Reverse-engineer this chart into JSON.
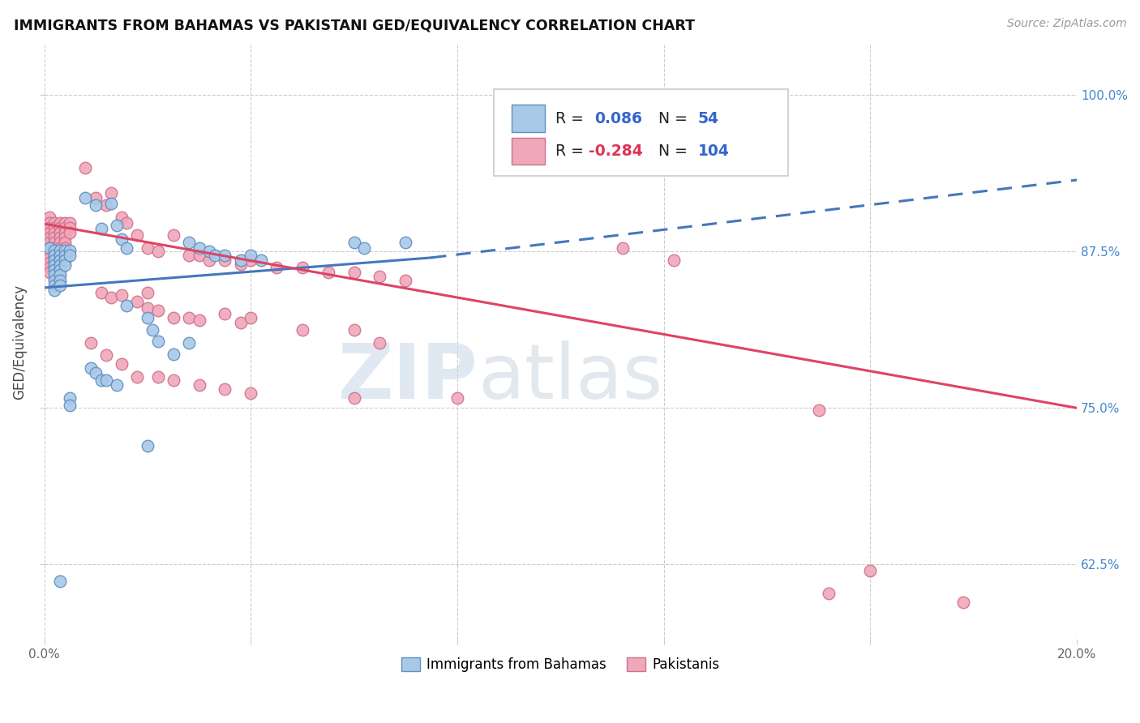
{
  "title": "IMMIGRANTS FROM BAHAMAS VS PAKISTANI GED/EQUIVALENCY CORRELATION CHART",
  "source": "Source: ZipAtlas.com",
  "ylabel": "GED/Equivalency",
  "yticks": [
    "62.5%",
    "75.0%",
    "87.5%",
    "100.0%"
  ],
  "ytick_vals": [
    0.625,
    0.75,
    0.875,
    1.0
  ],
  "xlim": [
    0.0,
    0.2
  ],
  "ylim": [
    0.565,
    1.04
  ],
  "blue_color": "#A8C8E8",
  "pink_color": "#F0A8B8",
  "blue_edge_color": "#6090C0",
  "pink_edge_color": "#D07090",
  "blue_line_color": "#4477BB",
  "pink_line_color": "#DD4466",
  "blue_scatter": [
    [
      0.001,
      0.878
    ],
    [
      0.002,
      0.876
    ],
    [
      0.002,
      0.872
    ],
    [
      0.002,
      0.868
    ],
    [
      0.002,
      0.864
    ],
    [
      0.002,
      0.86
    ],
    [
      0.002,
      0.856
    ],
    [
      0.002,
      0.852
    ],
    [
      0.002,
      0.848
    ],
    [
      0.002,
      0.844
    ],
    [
      0.003,
      0.876
    ],
    [
      0.003,
      0.872
    ],
    [
      0.003,
      0.868
    ],
    [
      0.003,
      0.864
    ],
    [
      0.003,
      0.86
    ],
    [
      0.003,
      0.856
    ],
    [
      0.003,
      0.852
    ],
    [
      0.003,
      0.848
    ],
    [
      0.004,
      0.876
    ],
    [
      0.004,
      0.872
    ],
    [
      0.004,
      0.868
    ],
    [
      0.004,
      0.864
    ],
    [
      0.005,
      0.876
    ],
    [
      0.005,
      0.872
    ],
    [
      0.005,
      0.758
    ],
    [
      0.005,
      0.752
    ],
    [
      0.008,
      0.918
    ],
    [
      0.01,
      0.912
    ],
    [
      0.011,
      0.893
    ],
    [
      0.013,
      0.913
    ],
    [
      0.014,
      0.896
    ],
    [
      0.015,
      0.885
    ],
    [
      0.016,
      0.878
    ],
    [
      0.02,
      0.822
    ],
    [
      0.021,
      0.812
    ],
    [
      0.022,
      0.803
    ],
    [
      0.025,
      0.793
    ],
    [
      0.028,
      0.882
    ],
    [
      0.028,
      0.802
    ],
    [
      0.03,
      0.878
    ],
    [
      0.032,
      0.875
    ],
    [
      0.033,
      0.872
    ],
    [
      0.035,
      0.872
    ],
    [
      0.038,
      0.868
    ],
    [
      0.04,
      0.872
    ],
    [
      0.042,
      0.868
    ],
    [
      0.009,
      0.782
    ],
    [
      0.01,
      0.778
    ],
    [
      0.011,
      0.772
    ],
    [
      0.012,
      0.772
    ],
    [
      0.014,
      0.768
    ],
    [
      0.016,
      0.832
    ],
    [
      0.02,
      0.72
    ],
    [
      0.06,
      0.882
    ],
    [
      0.062,
      0.878
    ],
    [
      0.07,
      0.882
    ],
    [
      0.003,
      0.612
    ]
  ],
  "pink_scatter": [
    [
      0.001,
      0.902
    ],
    [
      0.001,
      0.898
    ],
    [
      0.001,
      0.894
    ],
    [
      0.001,
      0.89
    ],
    [
      0.001,
      0.886
    ],
    [
      0.001,
      0.882
    ],
    [
      0.001,
      0.878
    ],
    [
      0.001,
      0.874
    ],
    [
      0.001,
      0.87
    ],
    [
      0.001,
      0.866
    ],
    [
      0.001,
      0.862
    ],
    [
      0.001,
      0.858
    ],
    [
      0.002,
      0.898
    ],
    [
      0.002,
      0.894
    ],
    [
      0.002,
      0.89
    ],
    [
      0.002,
      0.886
    ],
    [
      0.002,
      0.882
    ],
    [
      0.002,
      0.878
    ],
    [
      0.002,
      0.874
    ],
    [
      0.002,
      0.87
    ],
    [
      0.002,
      0.866
    ],
    [
      0.002,
      0.862
    ],
    [
      0.003,
      0.898
    ],
    [
      0.003,
      0.894
    ],
    [
      0.003,
      0.89
    ],
    [
      0.003,
      0.886
    ],
    [
      0.003,
      0.882
    ],
    [
      0.003,
      0.878
    ],
    [
      0.003,
      0.874
    ],
    [
      0.003,
      0.87
    ],
    [
      0.004,
      0.898
    ],
    [
      0.004,
      0.894
    ],
    [
      0.004,
      0.89
    ],
    [
      0.004,
      0.886
    ],
    [
      0.004,
      0.882
    ],
    [
      0.004,
      0.878
    ],
    [
      0.005,
      0.898
    ],
    [
      0.005,
      0.894
    ],
    [
      0.005,
      0.89
    ],
    [
      0.008,
      0.942
    ],
    [
      0.01,
      0.918
    ],
    [
      0.012,
      0.912
    ],
    [
      0.013,
      0.922
    ],
    [
      0.015,
      0.902
    ],
    [
      0.016,
      0.898
    ],
    [
      0.018,
      0.888
    ],
    [
      0.02,
      0.878
    ],
    [
      0.022,
      0.875
    ],
    [
      0.025,
      0.888
    ],
    [
      0.028,
      0.872
    ],
    [
      0.03,
      0.872
    ],
    [
      0.032,
      0.868
    ],
    [
      0.035,
      0.868
    ],
    [
      0.038,
      0.865
    ],
    [
      0.04,
      0.868
    ],
    [
      0.045,
      0.862
    ],
    [
      0.05,
      0.862
    ],
    [
      0.055,
      0.858
    ],
    [
      0.06,
      0.858
    ],
    [
      0.065,
      0.855
    ],
    [
      0.07,
      0.852
    ],
    [
      0.011,
      0.842
    ],
    [
      0.013,
      0.838
    ],
    [
      0.015,
      0.84
    ],
    [
      0.018,
      0.835
    ],
    [
      0.02,
      0.842
    ],
    [
      0.02,
      0.83
    ],
    [
      0.022,
      0.828
    ],
    [
      0.025,
      0.822
    ],
    [
      0.028,
      0.822
    ],
    [
      0.03,
      0.82
    ],
    [
      0.035,
      0.825
    ],
    [
      0.038,
      0.818
    ],
    [
      0.04,
      0.822
    ],
    [
      0.05,
      0.812
    ],
    [
      0.06,
      0.812
    ],
    [
      0.065,
      0.802
    ],
    [
      0.009,
      0.802
    ],
    [
      0.012,
      0.792
    ],
    [
      0.015,
      0.785
    ],
    [
      0.018,
      0.775
    ],
    [
      0.022,
      0.775
    ],
    [
      0.025,
      0.772
    ],
    [
      0.03,
      0.768
    ],
    [
      0.035,
      0.765
    ],
    [
      0.04,
      0.762
    ],
    [
      0.06,
      0.758
    ],
    [
      0.08,
      0.758
    ],
    [
      0.112,
      0.878
    ],
    [
      0.122,
      0.868
    ],
    [
      0.15,
      0.748
    ],
    [
      0.152,
      0.602
    ],
    [
      0.178,
      0.595
    ],
    [
      0.16,
      0.62
    ]
  ],
  "blue_solid_line": [
    [
      0.0,
      0.846
    ],
    [
      0.075,
      0.87
    ]
  ],
  "blue_dashed_line": [
    [
      0.075,
      0.87
    ],
    [
      0.2,
      0.932
    ]
  ],
  "pink_line": [
    [
      0.0,
      0.897
    ],
    [
      0.2,
      0.75
    ]
  ],
  "watermark_zip": "ZIP",
  "watermark_atlas": "atlas",
  "legend_blue_label": "Immigrants from Bahamas",
  "legend_pink_label": "Pakistanis"
}
